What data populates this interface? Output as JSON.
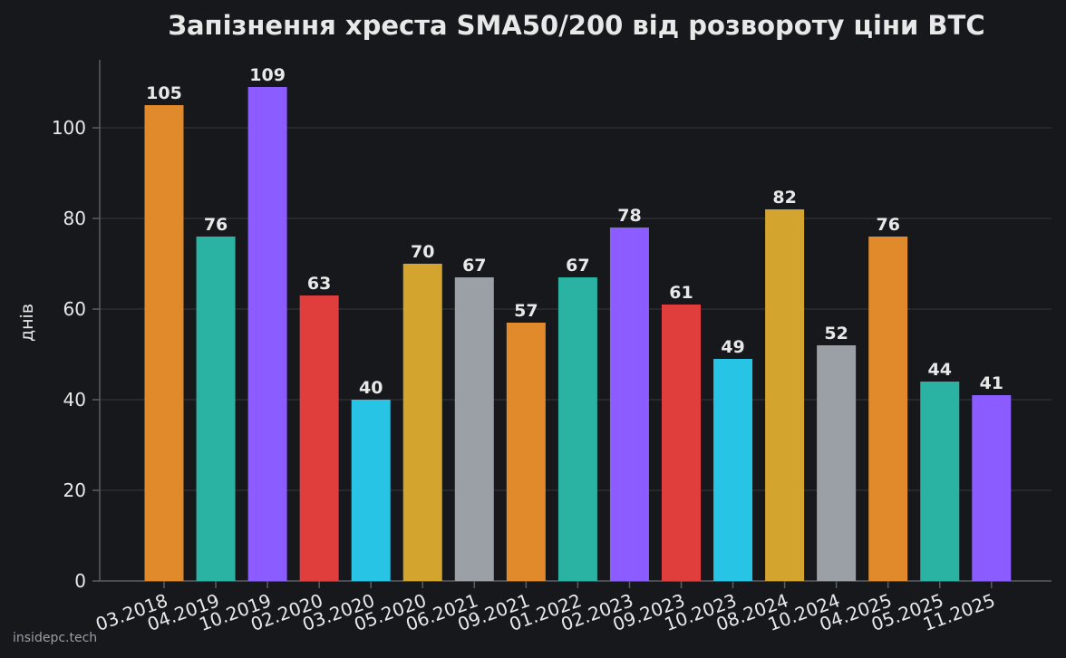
{
  "chart_data": {
    "type": "bar",
    "title": "Запізнення хреста SMA50/200 від розвороту ціни BTC",
    "xlabel": "",
    "ylabel": "днів",
    "ylim": [
      0,
      115
    ],
    "yticks": [
      0,
      20,
      40,
      60,
      80,
      100
    ],
    "grid": true,
    "categories": [
      "03.2018",
      "04.2019",
      "10.2019",
      "02.2020",
      "03.2020",
      "05.2020",
      "06.2021",
      "09.2021",
      "01.2022",
      "02.2023",
      "09.2023",
      "10.2023",
      "08.2024",
      "10.2024",
      "04.2025",
      "05.2025",
      "11.2025"
    ],
    "values": [
      105,
      76,
      109,
      63,
      40,
      70,
      67,
      57,
      67,
      78,
      61,
      49,
      82,
      52,
      76,
      44,
      41
    ],
    "colors": [
      "#e08a2c",
      "#2ab3a3",
      "#8b5cff",
      "#e03d3d",
      "#27c4e6",
      "#d4a52e",
      "#9aa0a6",
      "#e08a2c",
      "#2ab3a3",
      "#8b5cff",
      "#e03d3d",
      "#27c4e6",
      "#d4a52e",
      "#9aa0a6",
      "#e08a2c",
      "#2ab3a3",
      "#8b5cff"
    ]
  },
  "watermark": "insidepc.tech",
  "style": {
    "background": "#17181c",
    "grid_color": "#2c2e33",
    "axis_color": "#5a5d63",
    "text_color": "#e8e8e8"
  }
}
